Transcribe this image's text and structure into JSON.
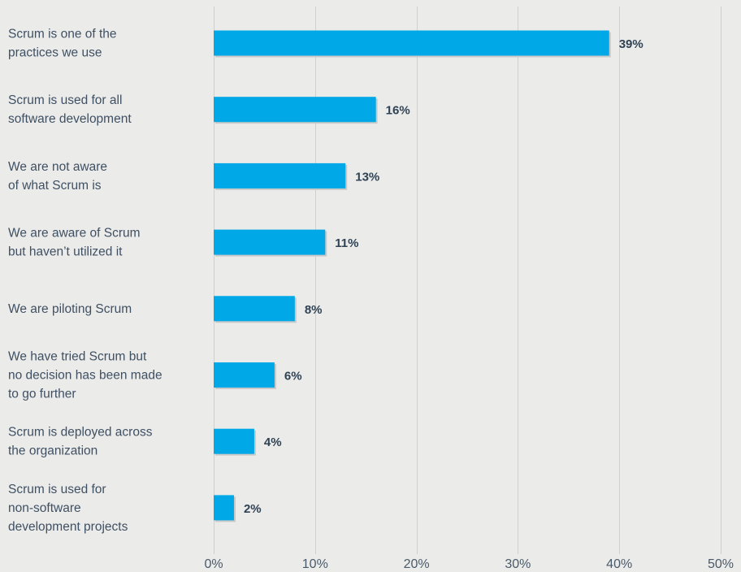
{
  "chart_data": {
    "type": "bar",
    "orientation": "horizontal",
    "categories": [
      "Scrum is one of the\npractices we use",
      "Scrum is used for all\nsoftware development",
      "We are not aware\nof what Scrum is",
      "We are aware of Scrum\nbut haven’t utilized it",
      "We are piloting Scrum",
      "We have tried Scrum but\nno decision has been made\nto go further",
      "Scrum is deployed across\nthe organization",
      "Scrum is used for\nnon-software\ndevelopment projects"
    ],
    "values": [
      39,
      16,
      13,
      11,
      8,
      6,
      4,
      2
    ],
    "data_labels": [
      "39%",
      "16%",
      "13%",
      "11%",
      "8%",
      "6%",
      "4%",
      "2%"
    ],
    "x_ticks": [
      "0%",
      "10%",
      "20%",
      "30%",
      "40%",
      "50%"
    ],
    "xlim": [
      0,
      50
    ],
    "grid": "vertical",
    "colors": {
      "background": "#ebebea",
      "bar": "#00a8e8",
      "bar_shadow": "#c9c9c9",
      "gridline": "#cfcfcf",
      "category_text": "#3f5063",
      "value_text": "#2f4254",
      "tick_text": "#4a5a6a"
    }
  }
}
